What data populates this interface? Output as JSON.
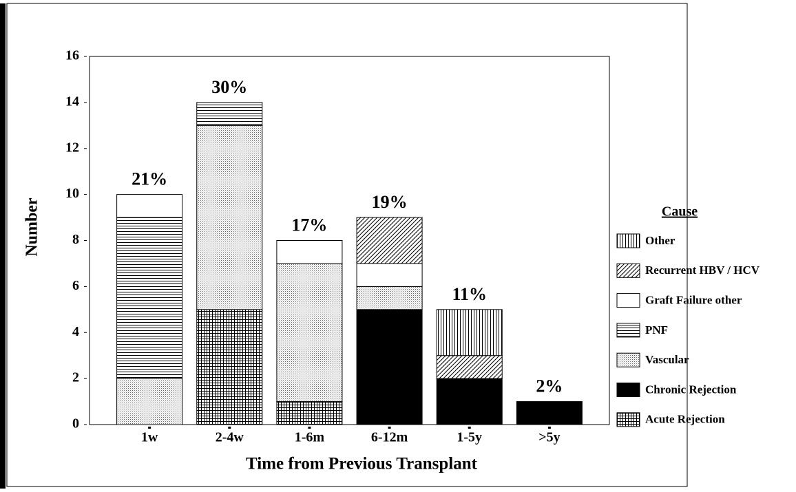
{
  "chart_data": {
    "type": "stacked-bar",
    "x_label": "Time from Previous Transplant",
    "y_label": "Number",
    "legend_title": "Cause",
    "legend": "right",
    "categories": [
      "1w",
      "2-4w",
      "1-6m",
      "6-12m",
      "1-5y",
      ">5y"
    ],
    "annotations": [
      "21%",
      "30%",
      "17%",
      "19%",
      "11%",
      "2%"
    ],
    "series": [
      {
        "name": "Acute Rejection",
        "color": "#000000",
        "pattern": "grid",
        "values": [
          0,
          5,
          1,
          0,
          0,
          0
        ]
      },
      {
        "name": "Chronic Rejection",
        "color": "#000000",
        "pattern": "solid",
        "values": [
          0,
          0,
          0,
          5,
          2,
          1
        ]
      },
      {
        "name": "Vascular",
        "color": "#000000",
        "pattern": "dots",
        "values": [
          2,
          8,
          6,
          1,
          0,
          0
        ]
      },
      {
        "name": "PNF",
        "color": "#000000",
        "pattern": "hlines",
        "values": [
          7,
          1,
          0,
          0,
          0,
          0
        ]
      },
      {
        "name": "Graft Failure other",
        "color": "#000000",
        "pattern": "none",
        "values": [
          1,
          0,
          1,
          1,
          0,
          0
        ]
      },
      {
        "name": "Recurrent HBV / HCV",
        "color": "#000000",
        "pattern": "diag",
        "values": [
          0,
          0,
          0,
          2,
          1,
          0
        ]
      },
      {
        "name": "Other",
        "color": "#000000",
        "pattern": "vlines",
        "values": [
          0,
          0,
          0,
          0,
          2,
          0
        ]
      }
    ],
    "ylim": [
      0,
      16
    ],
    "yticks": [
      0,
      2,
      4,
      6,
      8,
      10,
      12,
      14,
      16
    ]
  }
}
